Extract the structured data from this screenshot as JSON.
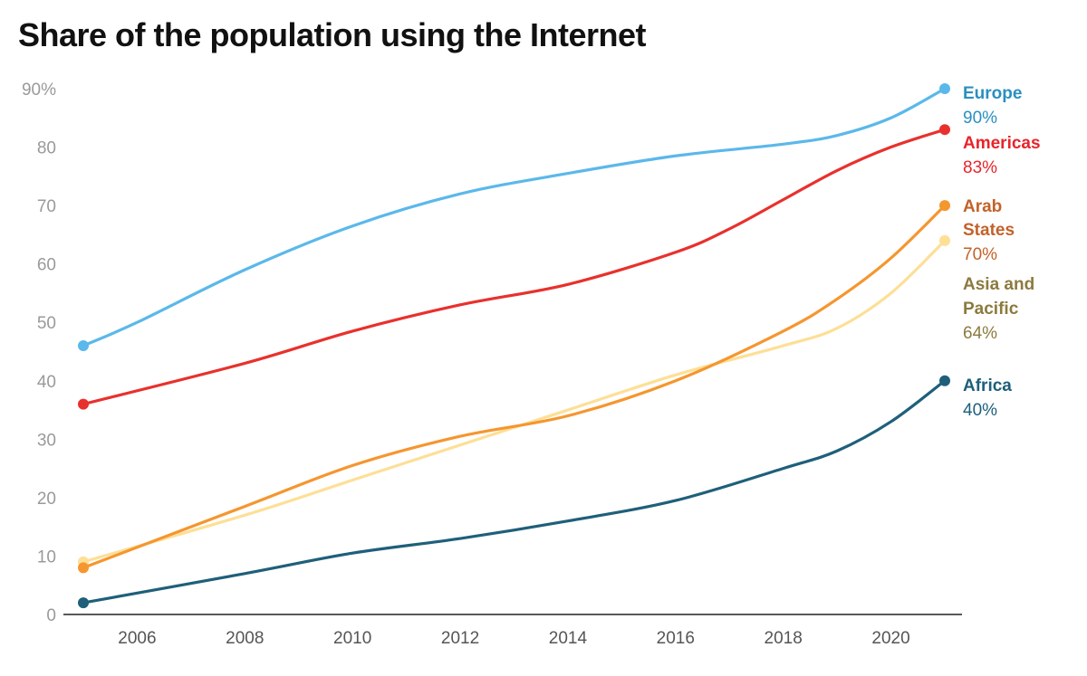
{
  "chart_data": {
    "type": "line",
    "title": "Share of the population using the Internet",
    "xlim": [
      2005,
      2021
    ],
    "ylim": [
      0,
      90
    ],
    "x_ticks": [
      "2006",
      "2008",
      "2010",
      "2012",
      "2014",
      "2016",
      "2018",
      "2020"
    ],
    "y_ticks": [
      "0",
      "10",
      "20",
      "30",
      "40",
      "50",
      "60",
      "70",
      "80",
      "90%"
    ],
    "grid": false,
    "legend": "direct labels at line ends, right",
    "series": [
      {
        "name": "Europe",
        "end_label": "90%",
        "color": "#5bb8ea",
        "label_color": "#2b8fc0",
        "x": [
          2005,
          2006,
          2008,
          2010,
          2012,
          2014,
          2016,
          2018,
          2019,
          2020,
          2021
        ],
        "values": [
          46,
          50,
          59,
          66.5,
          72,
          75.5,
          78.5,
          80.5,
          82,
          85,
          90
        ]
      },
      {
        "name": "Americas",
        "end_label": "83%",
        "color": "#e8312d",
        "label_color": "#e8242a",
        "x": [
          2005,
          2008,
          2010,
          2012,
          2014,
          2016,
          2017,
          2018,
          2019,
          2020,
          2021
        ],
        "values": [
          36,
          43,
          48.5,
          53,
          56.5,
          62,
          66,
          71,
          76,
          80,
          83
        ]
      },
      {
        "name": "Arab States",
        "name_lines": [
          "Arab",
          "States"
        ],
        "end_label": "70%",
        "color": "#f5962f",
        "label_color": "#c2622a",
        "x": [
          2005,
          2008,
          2010,
          2012,
          2014,
          2016,
          2018,
          2019,
          2020,
          2021
        ],
        "values": [
          8,
          18.5,
          25.5,
          30.5,
          34,
          40,
          48.5,
          54,
          61,
          70
        ]
      },
      {
        "name": "Asia and Pacific",
        "name_lines": [
          "Asia and",
          "Pacific"
        ],
        "end_label": "64%",
        "color": "#fddf96",
        "label_color": "#8c7a3f",
        "x": [
          2005,
          2008,
          2010,
          2012,
          2014,
          2016,
          2018,
          2019,
          2020,
          2021
        ],
        "values": [
          9,
          17,
          23,
          29,
          35,
          41,
          46,
          49,
          55,
          64
        ]
      },
      {
        "name": "Africa",
        "end_label": "40%",
        "color": "#1f5f7a",
        "label_color": "#1d5f7a",
        "x": [
          2005,
          2008,
          2010,
          2012,
          2014,
          2016,
          2018,
          2019,
          2020,
          2021
        ],
        "values": [
          2,
          7,
          10.5,
          13,
          16,
          19.5,
          25,
          28,
          33,
          40
        ]
      }
    ]
  }
}
